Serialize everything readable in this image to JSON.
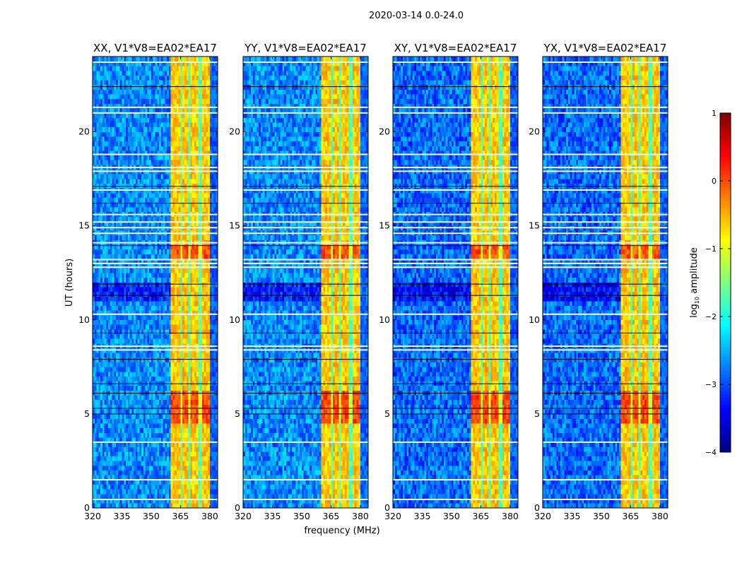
{
  "chart_data": {
    "type": "heatmap",
    "title": "2020-03-14 0.0-24.0",
    "xlabel": "frequency (MHz)",
    "ylabel": "UT (hours)",
    "xlim": [
      320,
      384
    ],
    "ylim": [
      0,
      24
    ],
    "xticks": [
      "320",
      "335",
      "350",
      "365",
      "380"
    ],
    "xtick_values": [
      320,
      335,
      350,
      365,
      380
    ],
    "yticks": [
      "0",
      "5",
      "10",
      "15",
      "20"
    ],
    "ytick_values": [
      0,
      5,
      10,
      15,
      20
    ],
    "panels": [
      {
        "title": "XX, V1*V8=EA02*EA17"
      },
      {
        "title": "YY, V1*V8=EA02*EA17"
      },
      {
        "title": "XY, V1*V8=EA02*EA17"
      },
      {
        "title": "YX, V1*V8=EA02*EA17"
      }
    ],
    "colorbar": {
      "label_main": "log",
      "label_sub": "10",
      "label_rest": " amplitude",
      "range": [
        -4,
        1
      ],
      "ticks": [
        "1",
        "0",
        "−1",
        "−2",
        "−3",
        "−4"
      ],
      "tick_values": [
        1,
        0,
        -1,
        -2,
        -3,
        -4
      ],
      "colormap": "jet"
    },
    "background_level": -2.7,
    "band": {
      "range_mhz": [
        360.5,
        380
      ],
      "level": -0.6,
      "gaps_mhz": [
        365.5,
        369.5,
        375
      ]
    },
    "enhanced_hours": [
      [
        13.2,
        14.0
      ],
      [
        4.6,
        6.2
      ]
    ],
    "quiet_hours": [
      [
        11.0,
        12.0
      ]
    ],
    "flagged_white_hours": [
      23.7,
      21.3,
      21.0,
      18.8,
      18.1,
      17.9,
      16.9,
      15.6,
      15.2,
      14.9,
      14.6,
      14.1,
      13.2,
      13.0,
      12.8,
      10.3,
      8.6,
      8.4,
      3.5,
      1.5,
      0.45
    ],
    "flagged_black_hours": [
      22.4,
      17.1,
      16.2,
      13.95,
      11.9,
      11.3,
      9.3,
      7.9,
      6.6,
      6.1,
      5.3,
      5.0
    ]
  }
}
